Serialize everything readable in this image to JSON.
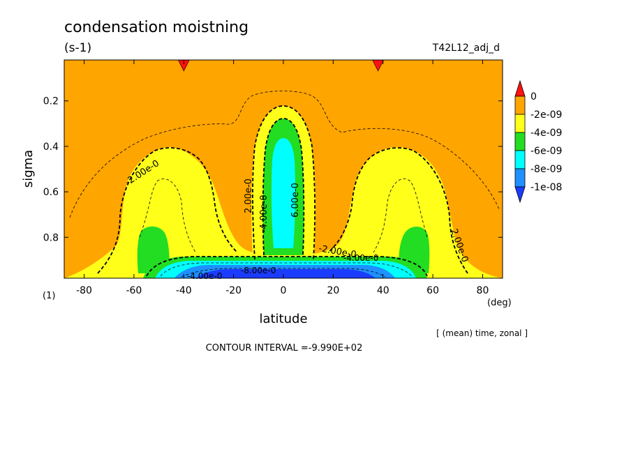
{
  "chart_data": {
    "type": "heatmap",
    "title": "condensation moistning",
    "units": "(s-1)",
    "run_label": "T42L12_adj_d",
    "xlabel": "latitude",
    "xunit": "(deg)",
    "ylabel": "sigma",
    "y_level_note": "(1)",
    "xlim": [
      -88,
      88
    ],
    "ylim": [
      0.98,
      0.02
    ],
    "x_ticks": [
      "-80",
      "-60",
      "-40",
      "-20",
      "0",
      "20",
      "40",
      "60",
      "80"
    ],
    "x_tick_values": [
      -80,
      -60,
      -40,
      -20,
      0,
      20,
      40,
      60,
      80
    ],
    "y_ticks": [
      "0.2",
      "0.4",
      "0.6",
      "0.8"
    ],
    "y_tick_values": [
      0.2,
      0.4,
      0.6,
      0.8
    ],
    "averaging": "[ (mean) time, zonal ]",
    "contour_interval": "CONTOUR INTERVAL =-9.990E+02",
    "colorbar": {
      "labels": [
        "0",
        "-2e-09",
        "-4e-09",
        "-6e-09",
        "-8e-09",
        "-1e-08"
      ],
      "levels": [
        0,
        -2e-09,
        -4e-09,
        -6e-09,
        -8e-09,
        -1e-08
      ],
      "colors": [
        "#ff1111",
        "#ffa500",
        "#ffff1a",
        "#22dd22",
        "#00ffff",
        "#1e90ff",
        "#1b3bff"
      ]
    },
    "contour_labels": [
      "-2.00e-0",
      "2.00e-0",
      "-4.00e-0",
      "6.00e-0",
      "-2.00e-0",
      "-4.00e-0",
      "2.00e-0",
      "-4.00e-0",
      "-8.00e-0"
    ],
    "regions": [
      {
        "level": "-2e-09 to -4e-09",
        "color": "#ffff1a",
        "lat": [
          -70,
          -35
        ],
        "sigma": [
          0.42,
          0.98
        ]
      },
      {
        "level": "-2e-09 to -4e-09",
        "color": "#ffff1a",
        "lat": [
          35,
          70
        ],
        "sigma": [
          0.42,
          0.98
        ]
      },
      {
        "level": "-2e-09 to -4e-09",
        "color": "#ffff1a",
        "lat": [
          -12,
          12
        ],
        "sigma": [
          0.2,
          0.95
        ]
      },
      {
        "level": "-4e-09 to -6e-09",
        "color": "#22dd22",
        "lat": [
          -8,
          8
        ],
        "sigma": [
          0.28,
          0.9
        ]
      },
      {
        "level": "-6e-09 to -8e-09",
        "color": "#00ffff",
        "lat": [
          -5,
          5
        ],
        "sigma": [
          0.37,
          0.88
        ]
      },
      {
        "level": "-4e-09 to -6e-09",
        "color": "#22dd22",
        "lat": [
          -58,
          -46
        ],
        "sigma": [
          0.78,
          0.94
        ]
      },
      {
        "level": "-4e-09 to -6e-09",
        "color": "#22dd22",
        "lat": [
          46,
          58
        ],
        "sigma": [
          0.78,
          0.94
        ]
      },
      {
        "level": "< -1e-08",
        "color": "#1b3bff",
        "lat": [
          -55,
          55
        ],
        "sigma": [
          0.9,
          0.98
        ]
      }
    ],
    "extreme_markers_lat": [
      -40,
      38
    ],
    "grid": false,
    "legend": "right"
  }
}
